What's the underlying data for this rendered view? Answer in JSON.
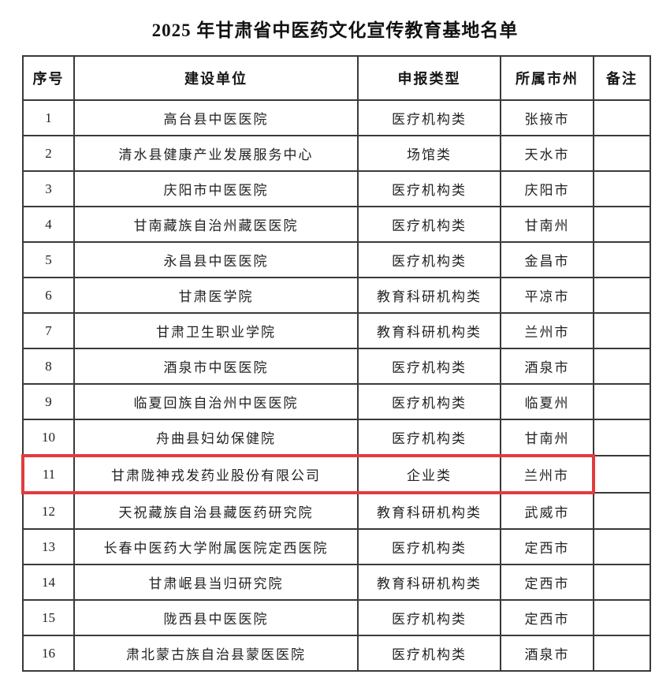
{
  "page": {
    "title": "2025 年甘肃省中医药文化宣传教育基地名单"
  },
  "colors": {
    "highlight_red": "#e23b3e",
    "grid_line": "#3a3a3a",
    "text": "#222222",
    "background": "#ffffff"
  },
  "table": {
    "headers": [
      "序号",
      "建设单位",
      "申报类型",
      "所属市州",
      "备注"
    ],
    "rows": [
      {
        "no": "1",
        "unit": "高台县中医医院",
        "type": "医疗机构类",
        "city": "张掖市",
        "note": "",
        "highlighted": false
      },
      {
        "no": "2",
        "unit": "清水县健康产业发展服务中心",
        "type": "场馆类",
        "city": "天水市",
        "note": "",
        "highlighted": false
      },
      {
        "no": "3",
        "unit": "庆阳市中医医院",
        "type": "医疗机构类",
        "city": "庆阳市",
        "note": "",
        "highlighted": false
      },
      {
        "no": "4",
        "unit": "甘南藏族自治州藏医医院",
        "type": "医疗机构类",
        "city": "甘南州",
        "note": "",
        "highlighted": false
      },
      {
        "no": "5",
        "unit": "永昌县中医医院",
        "type": "医疗机构类",
        "city": "金昌市",
        "note": "",
        "highlighted": false
      },
      {
        "no": "6",
        "unit": "甘肃医学院",
        "type": "教育科研机构类",
        "city": "平凉市",
        "note": "",
        "highlighted": false
      },
      {
        "no": "7",
        "unit": "甘肃卫生职业学院",
        "type": "教育科研机构类",
        "city": "兰州市",
        "note": "",
        "highlighted": false
      },
      {
        "no": "8",
        "unit": "酒泉市中医医院",
        "type": "医疗机构类",
        "city": "酒泉市",
        "note": "",
        "highlighted": false
      },
      {
        "no": "9",
        "unit": "临夏回族自治州中医医院",
        "type": "医疗机构类",
        "city": "临夏州",
        "note": "",
        "highlighted": false
      },
      {
        "no": "10",
        "unit": "舟曲县妇幼保健院",
        "type": "医疗机构类",
        "city": "甘南州",
        "note": "",
        "highlighted": false
      },
      {
        "no": "11",
        "unit": "甘肃陇神戎发药业股份有限公司",
        "type": "企业类",
        "city": "兰州市",
        "note": "",
        "highlighted": true
      },
      {
        "no": "12",
        "unit": "天祝藏族自治县藏医药研究院",
        "type": "教育科研机构类",
        "city": "武威市",
        "note": "",
        "highlighted": false
      },
      {
        "no": "13",
        "unit": "长春中医药大学附属医院定西医院",
        "type": "医疗机构类",
        "city": "定西市",
        "note": "",
        "highlighted": false
      },
      {
        "no": "14",
        "unit": "甘肃岷县当归研究院",
        "type": "教育科研机构类",
        "city": "定西市",
        "note": "",
        "highlighted": false
      },
      {
        "no": "15",
        "unit": "陇西县中医医院",
        "type": "医疗机构类",
        "city": "定西市",
        "note": "",
        "highlighted": false
      },
      {
        "no": "16",
        "unit": "肃北蒙古族自治县蒙医医院",
        "type": "医疗机构类",
        "city": "酒泉市",
        "note": "",
        "highlighted": false
      }
    ]
  }
}
